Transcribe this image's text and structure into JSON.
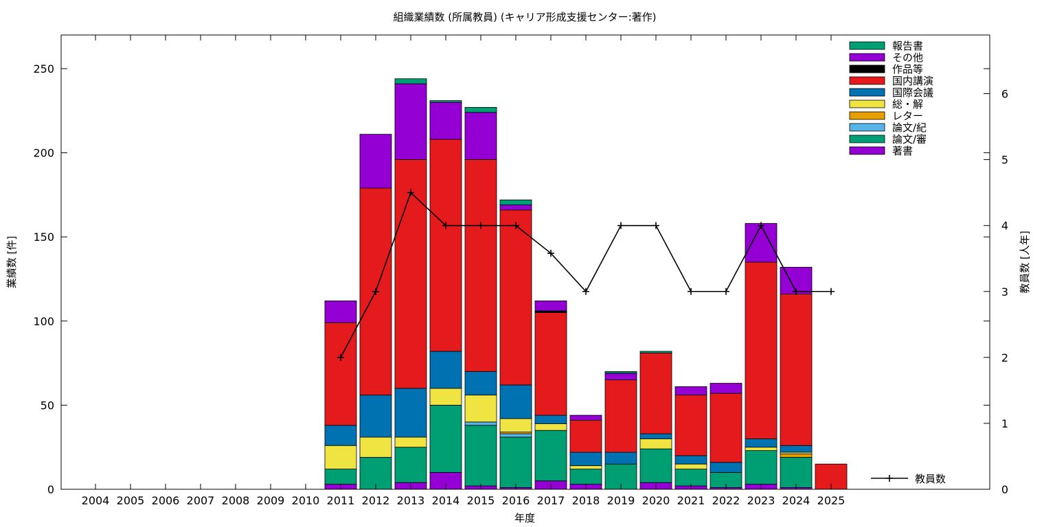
{
  "chart_data": {
    "type": "bar",
    "stacked": true,
    "title": "組織業績数 (所属教員) (キャリア形成支援センター:著作)",
    "xlabel": "年度",
    "ylabel": "業績数 [件]",
    "y2label": "教員数 [人年]",
    "ylim": [
      0,
      270
    ],
    "y2lim": [
      0,
      6.89
    ],
    "yticks": [
      0,
      50,
      100,
      150,
      200,
      250
    ],
    "y2ticks": [
      0,
      1,
      2,
      3,
      4,
      5,
      6
    ],
    "categories": [
      "2004",
      "2005",
      "2006",
      "2007",
      "2008",
      "2009",
      "2010",
      "2011",
      "2012",
      "2013",
      "2014",
      "2015",
      "2016",
      "2017",
      "2018",
      "2019",
      "2020",
      "2021",
      "2022",
      "2023",
      "2024",
      "2025"
    ],
    "legend_position": "top-right",
    "series": [
      {
        "name": "著書",
        "color": "#9400d3",
        "values": [
          0,
          0,
          0,
          0,
          0,
          0,
          0,
          3,
          0,
          4,
          10,
          2,
          1,
          5,
          3,
          0,
          4,
          2,
          1,
          3,
          1,
          0
        ]
      },
      {
        "name": "論文/審",
        "color": "#009e73",
        "values": [
          0,
          0,
          0,
          0,
          0,
          0,
          0,
          9,
          19,
          21,
          40,
          36,
          30,
          30,
          9,
          15,
          20,
          10,
          9,
          20,
          18,
          0
        ]
      },
      {
        "name": "論文/紀",
        "color": "#56b4e9",
        "values": [
          0,
          0,
          0,
          0,
          0,
          0,
          0,
          0,
          0,
          0,
          0,
          2,
          2,
          0,
          0,
          0,
          0,
          0,
          0,
          0,
          0,
          0
        ]
      },
      {
        "name": "レター",
        "color": "#e69f00",
        "values": [
          0,
          0,
          0,
          0,
          0,
          0,
          0,
          0,
          0,
          0,
          0,
          0,
          1,
          0,
          0,
          0,
          0,
          0,
          0,
          0,
          2,
          0
        ]
      },
      {
        "name": "総・解",
        "color": "#f0e442",
        "values": [
          0,
          0,
          0,
          0,
          0,
          0,
          0,
          14,
          12,
          6,
          10,
          16,
          8,
          4,
          2,
          0,
          6,
          3,
          0,
          2,
          1,
          0
        ]
      },
      {
        "name": "国際会議",
        "color": "#0072b2",
        "values": [
          0,
          0,
          0,
          0,
          0,
          0,
          0,
          12,
          25,
          29,
          22,
          14,
          20,
          5,
          8,
          7,
          3,
          5,
          6,
          5,
          4,
          0
        ]
      },
      {
        "name": "国内講演",
        "color": "#e41a1c",
        "values": [
          0,
          0,
          0,
          0,
          0,
          0,
          0,
          61,
          123,
          136,
          126,
          126,
          104,
          61,
          19,
          43,
          48,
          36,
          41,
          105,
          90,
          15
        ]
      },
      {
        "name": "作品等",
        "color": "#000000",
        "values": [
          0,
          0,
          0,
          0,
          0,
          0,
          0,
          0,
          0,
          0,
          0,
          0,
          0,
          1,
          0,
          0,
          0,
          0,
          0,
          0,
          0,
          0
        ]
      },
      {
        "name": "その他",
        "color": "#9400d3",
        "values": [
          0,
          0,
          0,
          0,
          0,
          0,
          0,
          13,
          32,
          45,
          22,
          28,
          3,
          6,
          3,
          4,
          0,
          5,
          6,
          23,
          16,
          0
        ]
      },
      {
        "name": "報告書",
        "color": "#009e73",
        "values": [
          0,
          0,
          0,
          0,
          0,
          0,
          0,
          0,
          0,
          3,
          1,
          3,
          3,
          0,
          0,
          1,
          1,
          0,
          0,
          0,
          0,
          0
        ]
      }
    ],
    "line_series": {
      "name": "教員数",
      "color": "#000000",
      "axis": "y2",
      "values": [
        null,
        null,
        null,
        null,
        null,
        null,
        null,
        2,
        3,
        4.5,
        4,
        4,
        4,
        3.58,
        3,
        4,
        4,
        3,
        3,
        4,
        3,
        3
      ]
    }
  }
}
